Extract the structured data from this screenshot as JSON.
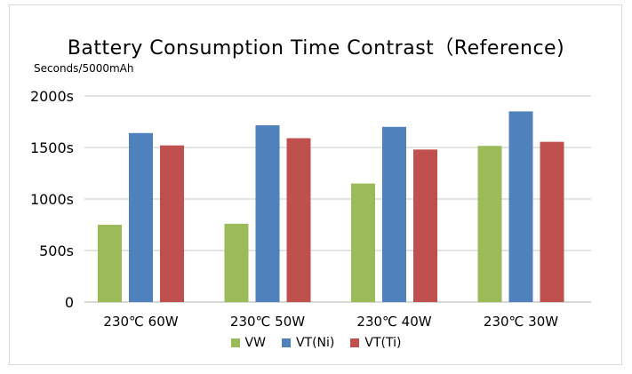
{
  "chart_data": {
    "type": "bar",
    "title": "Battery Consumption Time Contrast（Reference)",
    "unit_label": "Seconds/5000mAh",
    "categories": [
      "230℃ 60W",
      "230℃ 50W",
      "230℃ 40W",
      "230℃ 30W"
    ],
    "series": [
      {
        "name": "VW",
        "color": "#9bbb59",
        "values": [
          750,
          760,
          1150,
          1515
        ]
      },
      {
        "name": "VT(Ni)",
        "color": "#4f81bd",
        "values": [
          1640,
          1715,
          1700,
          1850
        ]
      },
      {
        "name": "VT(Ti)",
        "color": "#c0504d",
        "values": [
          1520,
          1590,
          1480,
          1555
        ]
      }
    ],
    "ylim": [
      0,
      2000
    ],
    "yticks": [
      0,
      500,
      1000,
      1500,
      2000
    ],
    "ytick_labels": [
      "0",
      "500s",
      "1000s",
      "1500s",
      "2000s"
    ],
    "grid": true,
    "legend_position": "bottom"
  }
}
